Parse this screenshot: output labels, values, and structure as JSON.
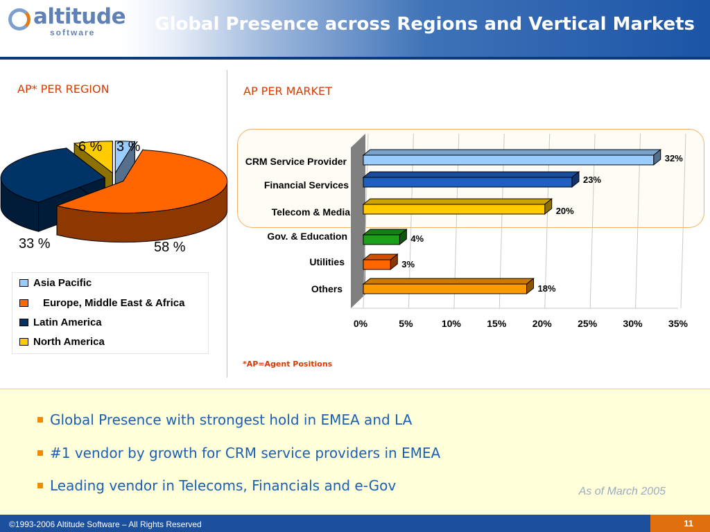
{
  "header": {
    "logo_text": "altitude",
    "logo_sub": "software",
    "title": "Global Presence across Regions and Vertical Markets"
  },
  "left_section": {
    "title": "AP* PER REGION"
  },
  "right_section": {
    "title": "AP PER MARKET",
    "footnote": "*AP=Agent Positions"
  },
  "chart_data": [
    {
      "type": "pie",
      "title": "AP* PER REGION",
      "categories": [
        "Asia Pacific",
        "Europe, Middle East & Africa",
        "Latin America",
        "North America"
      ],
      "values": [
        3,
        58,
        33,
        6
      ],
      "labels": [
        "3",
        "58",
        "33",
        "6"
      ],
      "unit": "%",
      "colors": [
        "#99ccff",
        "#ff6600",
        "#003366",
        "#ffcc00"
      ],
      "style": "3d-exploded",
      "legend": "bottom"
    },
    {
      "type": "bar",
      "orientation": "horizontal",
      "title": "AP PER MARKET",
      "categories": [
        "CRM Service Provider",
        "Financial Services",
        "Telecom & Media",
        "Gov. & Education",
        "Utilities",
        "Others"
      ],
      "values": [
        32,
        23,
        20,
        4,
        3,
        18
      ],
      "value_labels": [
        "32%",
        "23%",
        "20%",
        "4%",
        "3%",
        "18%"
      ],
      "colors": [
        "#99ccff",
        "#1f5fc0",
        "#ffcc00",
        "#1aa01a",
        "#ff6600",
        "#ff9900"
      ],
      "xlim": [
        0,
        35
      ],
      "xticks": [
        "0%",
        "5%",
        "10%",
        "15%",
        "20%",
        "25%",
        "30%",
        "35%"
      ],
      "grid": true,
      "style": "3d"
    }
  ],
  "bullets": [
    "Global Presence with strongest hold in  EMEA and LA",
    "#1 vendor by growth for CRM service providers in EMEA",
    "Leading vendor in Telecoms, Financials and e-Gov"
  ],
  "as_of": "As of March 2005",
  "footer": {
    "copyright": "©1993-2006 Altitude Software – All Rights Reserved",
    "page": "11"
  }
}
